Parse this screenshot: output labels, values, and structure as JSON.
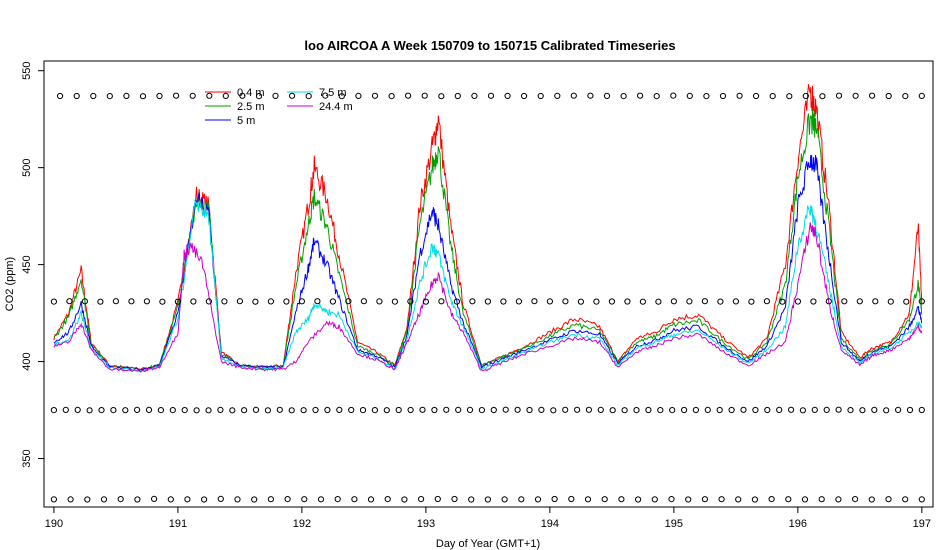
{
  "chart_data": {
    "type": "line",
    "title": "loo AIRCOA A  Week 150709 to 150715  Calibrated Timeseries",
    "xlabel": "Day of Year (GMT+1)",
    "ylabel": "CO2 (ppm)",
    "xlim": [
      189.92,
      197.09
    ],
    "ylim": [
      325,
      555
    ],
    "xticks": [
      190,
      191,
      192,
      193,
      194,
      195,
      196,
      197
    ],
    "yticks": [
      350,
      400,
      450,
      500,
      550
    ],
    "legend_position": "top-left",
    "series": [
      {
        "name": "0.4 m",
        "color": "#ff0000",
        "x": [
          190.0,
          190.12,
          190.22,
          190.3,
          190.45,
          190.7,
          190.85,
          191.0,
          191.15,
          191.25,
          191.35,
          191.5,
          191.7,
          191.85,
          191.95,
          192.05,
          192.1,
          192.2,
          192.3,
          192.45,
          192.6,
          192.75,
          192.85,
          192.95,
          193.05,
          193.1,
          193.2,
          193.3,
          193.45,
          193.6,
          193.8,
          194.0,
          194.2,
          194.4,
          194.55,
          194.7,
          194.85,
          195.0,
          195.2,
          195.4,
          195.6,
          195.75,
          195.9,
          196.0,
          196.1,
          196.15,
          196.25,
          196.35,
          196.5,
          196.6,
          196.75,
          196.9,
          196.97,
          197.0
        ],
        "y": [
          412,
          425,
          447,
          410,
          398,
          396,
          398,
          430,
          486,
          480,
          405,
          398,
          397,
          398,
          445,
          480,
          500,
          485,
          455,
          410,
          405,
          398,
          418,
          480,
          510,
          525,
          470,
          430,
          398,
          402,
          408,
          415,
          422,
          418,
          400,
          412,
          415,
          422,
          424,
          412,
          402,
          412,
          450,
          505,
          540,
          530,
          480,
          415,
          402,
          407,
          410,
          425,
          470,
          430
        ]
      },
      {
        "name": "2.5 m",
        "color": "#00a000",
        "x": [
          190.0,
          190.12,
          190.22,
          190.3,
          190.45,
          190.7,
          190.85,
          191.0,
          191.15,
          191.25,
          191.35,
          191.5,
          191.7,
          191.85,
          191.95,
          192.05,
          192.1,
          192.2,
          192.3,
          192.45,
          192.6,
          192.75,
          192.85,
          192.95,
          193.05,
          193.1,
          193.2,
          193.3,
          193.45,
          193.6,
          193.8,
          194.0,
          194.2,
          194.4,
          194.55,
          194.7,
          194.85,
          195.0,
          195.2,
          195.4,
          195.6,
          195.75,
          195.9,
          196.0,
          196.1,
          196.15,
          196.25,
          196.35,
          196.5,
          196.6,
          196.75,
          196.9,
          196.97,
          197.0
        ],
        "y": [
          412,
          423,
          443,
          409,
          398,
          396,
          398,
          428,
          485,
          478,
          404,
          398,
          397,
          398,
          438,
          470,
          485,
          470,
          445,
          408,
          404,
          398,
          416,
          470,
          500,
          510,
          460,
          425,
          398,
          402,
          407,
          413,
          419,
          416,
          400,
          410,
          413,
          419,
          421,
          410,
          401,
          410,
          440,
          495,
          525,
          520,
          470,
          412,
          401,
          406,
          409,
          422,
          440,
          425
        ]
      },
      {
        "name": "5 m",
        "color": "#0000ff",
        "x": [
          190.0,
          190.12,
          190.22,
          190.3,
          190.45,
          190.7,
          190.85,
          191.0,
          191.15,
          191.25,
          191.35,
          191.5,
          191.7,
          191.85,
          191.95,
          192.05,
          192.1,
          192.2,
          192.3,
          192.45,
          192.6,
          192.75,
          192.85,
          192.95,
          193.05,
          193.1,
          193.2,
          193.3,
          193.45,
          193.6,
          193.8,
          194.0,
          194.2,
          194.4,
          194.55,
          194.7,
          194.85,
          195.0,
          195.2,
          195.4,
          195.6,
          195.75,
          195.9,
          196.0,
          196.1,
          196.15,
          196.25,
          196.35,
          196.5,
          196.6,
          196.75,
          196.9,
          196.97,
          197.0
        ],
        "y": [
          410,
          415,
          430,
          408,
          397,
          396,
          398,
          425,
          484,
          476,
          403,
          398,
          397,
          397,
          425,
          448,
          462,
          450,
          432,
          406,
          403,
          397,
          414,
          455,
          478,
          470,
          440,
          420,
          397,
          401,
          406,
          411,
          416,
          414,
          399,
          408,
          411,
          416,
          418,
          408,
          400,
          408,
          428,
          480,
          505,
          500,
          455,
          410,
          400,
          405,
          408,
          418,
          428,
          420
        ]
      },
      {
        "name": "7.5 m",
        "color": "#00dddd",
        "x": [
          190.0,
          190.12,
          190.22,
          190.3,
          190.45,
          190.7,
          190.85,
          191.0,
          191.15,
          191.25,
          191.35,
          191.5,
          191.7,
          191.85,
          191.95,
          192.05,
          192.1,
          192.2,
          192.3,
          192.45,
          192.6,
          192.75,
          192.85,
          192.95,
          193.05,
          193.1,
          193.2,
          193.3,
          193.45,
          193.6,
          193.8,
          194.0,
          194.2,
          194.4,
          194.55,
          194.7,
          194.85,
          195.0,
          195.2,
          195.4,
          195.6,
          195.75,
          195.9,
          196.0,
          196.1,
          196.15,
          196.25,
          196.35,
          196.5,
          196.6,
          196.75,
          196.9,
          196.97,
          197.0
        ],
        "y": [
          409,
          411,
          425,
          407,
          397,
          395,
          397,
          422,
          483,
          474,
          402,
          397,
          396,
          397,
          415,
          422,
          430,
          426,
          424,
          405,
          402,
          396,
          412,
          440,
          460,
          455,
          432,
          418,
          396,
          400,
          405,
          410,
          414,
          412,
          398,
          407,
          410,
          414,
          416,
          407,
          399,
          406,
          418,
          460,
          480,
          470,
          440,
          408,
          399,
          404,
          407,
          415,
          420,
          418
        ]
      },
      {
        "name": "24.4 m",
        "color": "#cc00cc",
        "x": [
          190.0,
          190.12,
          190.22,
          190.3,
          190.45,
          190.7,
          190.85,
          191.0,
          191.05,
          191.1,
          191.2,
          191.35,
          191.5,
          191.7,
          191.85,
          191.95,
          192.05,
          192.2,
          192.3,
          192.45,
          192.6,
          192.75,
          192.85,
          192.95,
          193.05,
          193.1,
          193.2,
          193.3,
          193.45,
          193.6,
          193.8,
          194.0,
          194.2,
          194.4,
          194.55,
          194.7,
          194.85,
          195.0,
          195.2,
          195.4,
          195.6,
          195.75,
          195.9,
          196.0,
          196.1,
          196.15,
          196.25,
          196.35,
          196.5,
          196.6,
          196.75,
          196.9,
          196.97,
          197.0
        ],
        "y": [
          408,
          410,
          420,
          406,
          396,
          395,
          397,
          415,
          455,
          460,
          450,
          400,
          397,
          396,
          396,
          400,
          410,
          420,
          418,
          404,
          401,
          396,
          410,
          425,
          440,
          445,
          425,
          415,
          395,
          399,
          404,
          408,
          412,
          410,
          397,
          405,
          408,
          412,
          414,
          405,
          398,
          404,
          410,
          440,
          470,
          465,
          430,
          406,
          398,
          403,
          406,
          412,
          418,
          415
        ]
      }
    ],
    "point_rows": [
      {
        "y": 537,
        "x_start": 190.05,
        "x_end": 197.0,
        "count": 53
      },
      {
        "y": 431,
        "x_start": 190.0,
        "x_end": 197.0,
        "count": 57
      },
      {
        "y": 375,
        "x_start": 190.0,
        "x_end": 197.0,
        "count": 74
      },
      {
        "y": 329,
        "x_start": 190.0,
        "x_end": 197.0,
        "count": 53
      }
    ]
  }
}
